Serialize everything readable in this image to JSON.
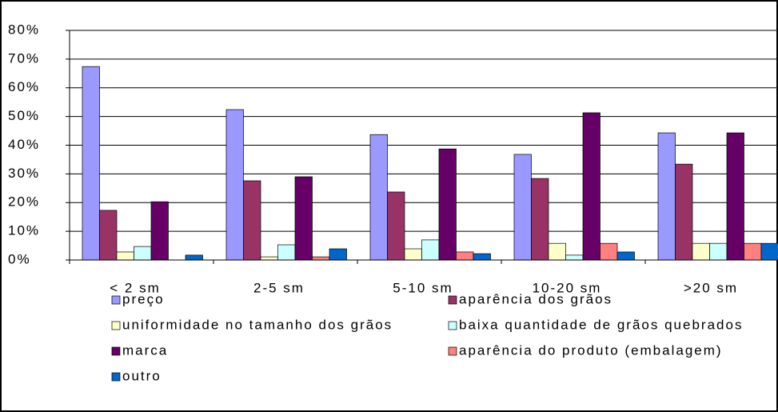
{
  "chart_data": {
    "type": "bar",
    "categories": [
      "< 2 sm",
      "2-5 sm",
      "5-10 sm",
      "10-20 sm",
      ">20 sm"
    ],
    "series": [
      {
        "name": "preço",
        "color": "#9999ff",
        "values": [
          67.4,
          52.4,
          43.7,
          36.8,
          44.3
        ]
      },
      {
        "name": "aparência dos grãos",
        "color": "#993366",
        "values": [
          17.3,
          27.6,
          23.7,
          28.4,
          33.4
        ]
      },
      {
        "name": "uniformidade no tamanho dos grãos",
        "color": "#ffffcc",
        "values": [
          2.8,
          1.1,
          3.9,
          5.8,
          5.8
        ]
      },
      {
        "name": "baixa quantidade de grãos quebrados",
        "color": "#ccffff",
        "values": [
          4.7,
          5.3,
          7.0,
          1.7,
          5.8
        ]
      },
      {
        "name": "marca",
        "color": "#660066",
        "values": [
          20.3,
          29.0,
          38.7,
          51.3,
          44.3
        ]
      },
      {
        "name": "aparência do produto (embalagem)",
        "color": "#ff8080",
        "values": [
          0,
          1.1,
          2.8,
          5.8,
          5.8
        ]
      },
      {
        "name": "outro",
        "color": "#0066cc",
        "values": [
          1.7,
          3.9,
          2.2,
          2.8,
          5.8
        ]
      }
    ],
    "ylim": [
      0,
      80
    ],
    "yticks": [
      {
        "value": 0,
        "label": "0%"
      },
      {
        "value": 10,
        "label": "10%"
      },
      {
        "value": 20,
        "label": "20%"
      },
      {
        "value": 30,
        "label": "30%"
      },
      {
        "value": 40,
        "label": "40%"
      },
      {
        "value": 50,
        "label": "50%"
      },
      {
        "value": 60,
        "label": "60%"
      },
      {
        "value": 70,
        "label": "70%"
      },
      {
        "value": 80,
        "label": "80%"
      }
    ],
    "grid": true,
    "legend": "bottom"
  }
}
